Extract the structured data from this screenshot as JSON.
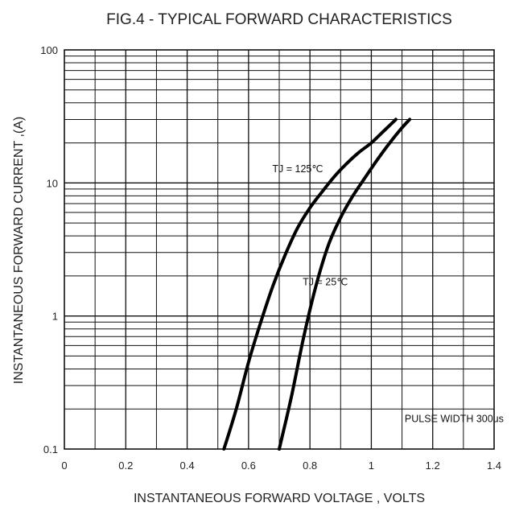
{
  "chart_data": {
    "type": "line",
    "title": "FIG.4 - TYPICAL FORWARD CHARACTERISTICS",
    "xlabel": "INSTANTANEOUS FORWARD VOLTAGE , VOLTS",
    "ylabel": "INSTANTANEOUS  FORWARD CURRENT ,(A)",
    "xlim": [
      0,
      1.4
    ],
    "ylim": [
      0.1,
      100
    ],
    "yscale": "log",
    "grid": true,
    "x_ticks": [
      0,
      0.2,
      0.4,
      0.6,
      0.8,
      1,
      1.2,
      1.4
    ],
    "x_tick_labels": [
      "0",
      "0.2",
      "0.4",
      "0.6",
      "0.8",
      "1",
      "1.2",
      "1.4"
    ],
    "y_ticks": [
      0.1,
      1,
      10,
      100
    ],
    "y_tick_labels": [
      "0.1",
      "1",
      "10",
      "100"
    ],
    "series": [
      {
        "name": "TJ = 125℃",
        "x": [
          0.52,
          0.56,
          0.6,
          0.64,
          0.68,
          0.72,
          0.76,
          0.8,
          0.84,
          0.88,
          0.92,
          0.96,
          1.0,
          1.04,
          1.08
        ],
        "y": [
          0.1,
          0.2,
          0.45,
          0.9,
          1.7,
          2.9,
          4.6,
          6.5,
          8.6,
          11.2,
          14.0,
          17.0,
          20.0,
          24.5,
          30.0
        ]
      },
      {
        "name": "TJ = 25℃",
        "x": [
          0.7,
          0.74,
          0.78,
          0.82,
          0.86,
          0.9,
          0.94,
          0.98,
          1.02,
          1.06,
          1.1,
          1.125
        ],
        "y": [
          0.1,
          0.25,
          0.7,
          1.7,
          3.4,
          5.5,
          8.0,
          11.0,
          15.0,
          20.0,
          26.0,
          30.0
        ]
      }
    ],
    "annotations": [
      {
        "text": "TJ = 125℃",
        "x": 0.76,
        "y": 12
      },
      {
        "text": "TJ = 25℃",
        "x": 0.85,
        "y": 1.7
      },
      {
        "text": "PULSE WIDTH 300us",
        "x": 1.27,
        "y": 0.16
      }
    ],
    "colors": {
      "line": "#000000",
      "grid": "#111111",
      "background": "#ffffff"
    }
  }
}
